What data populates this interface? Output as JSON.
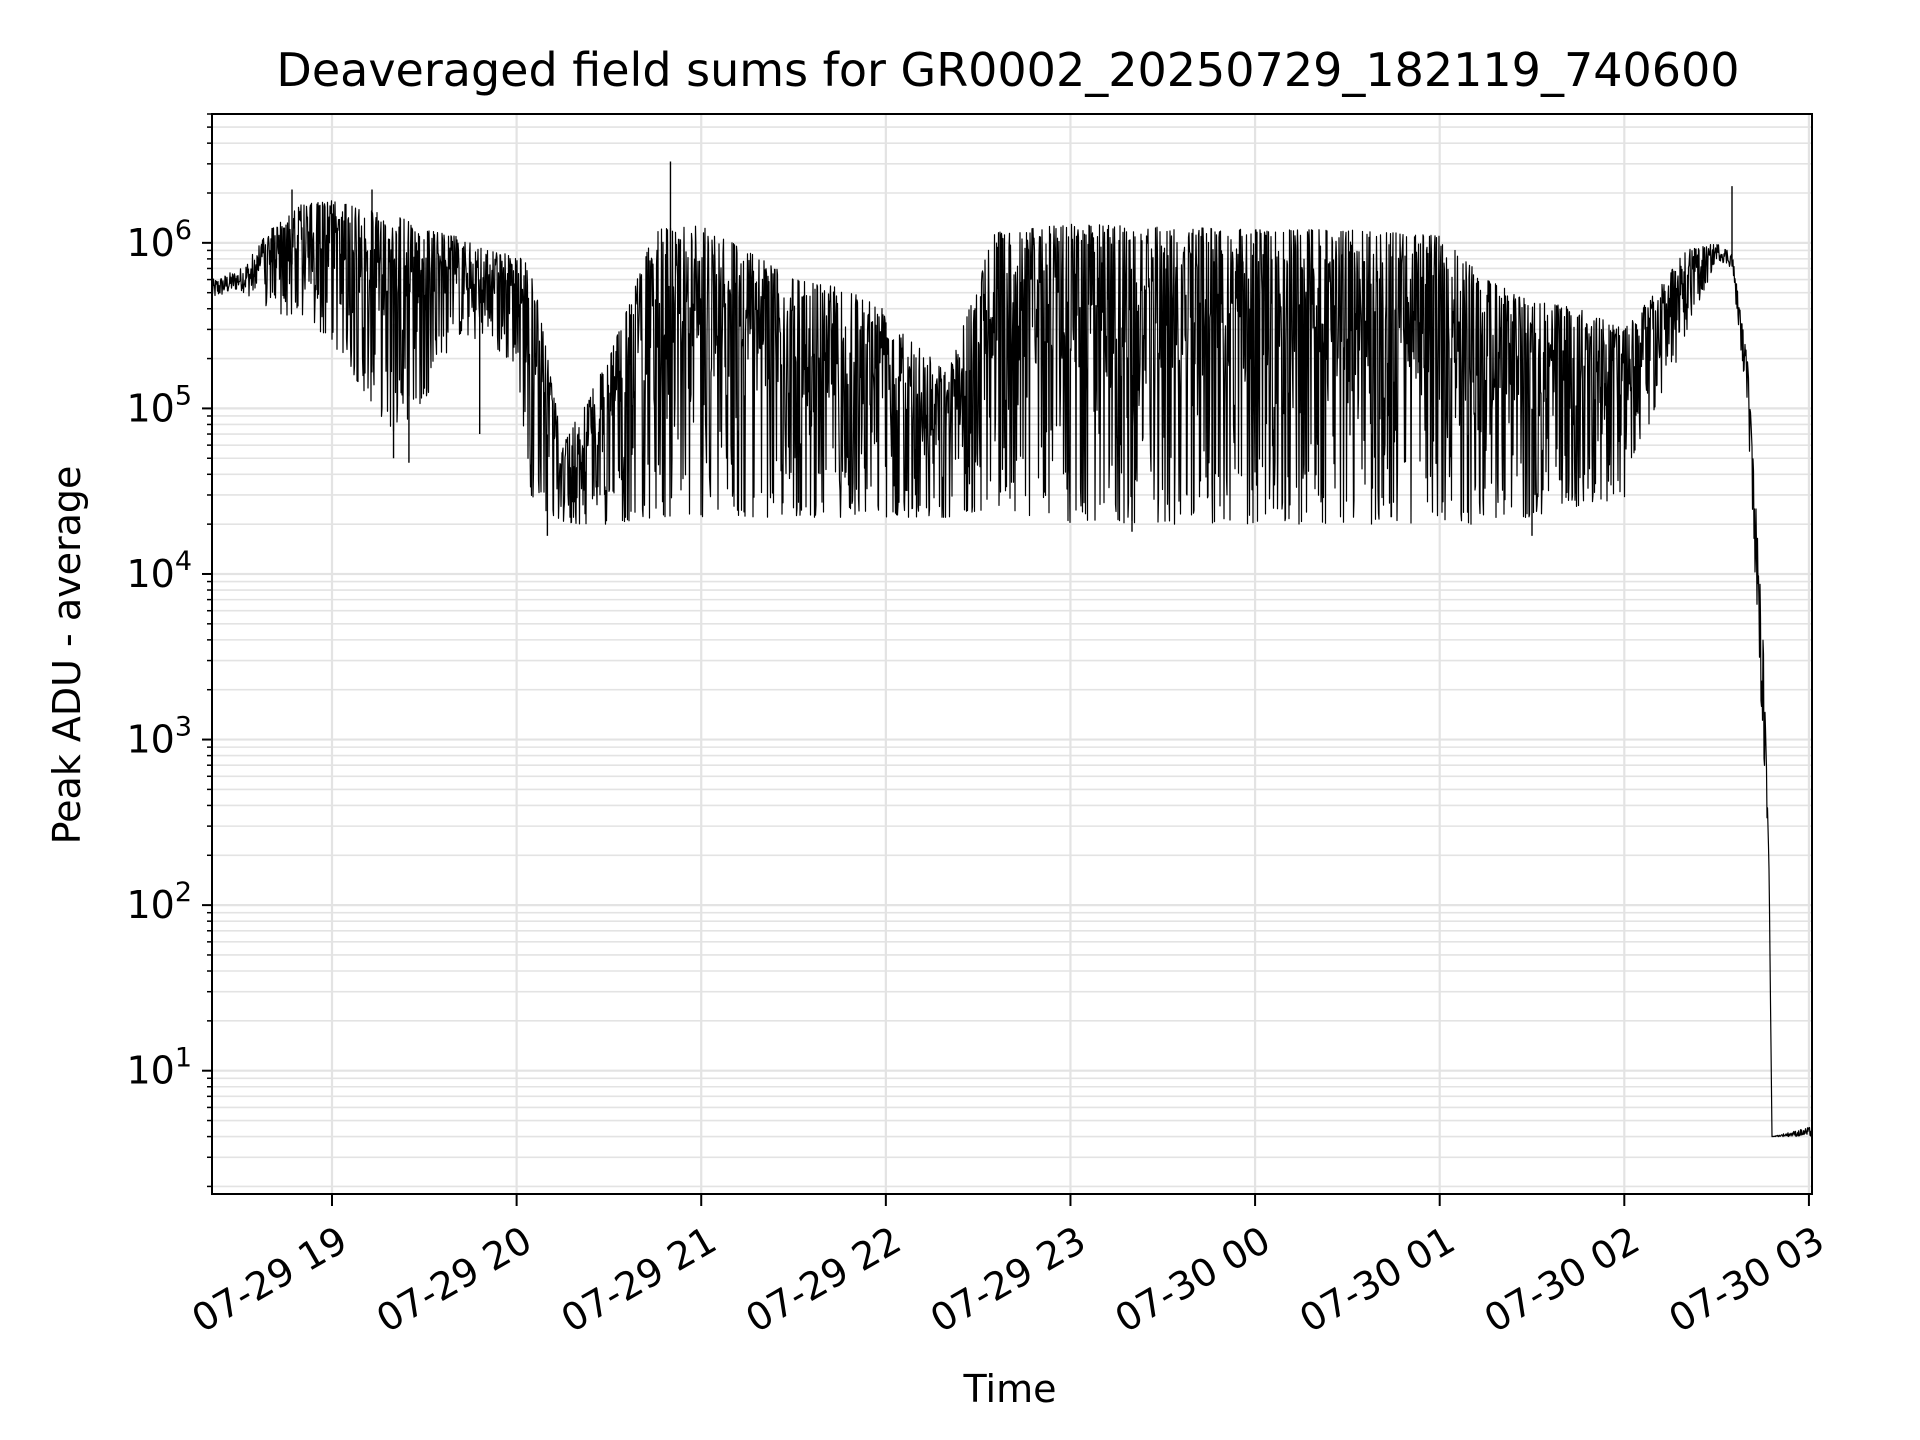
{
  "chart_data": {
    "type": "line",
    "title": "Deaveraged field sums for GR0002_20250729_182119_740600",
    "xlabel": "Time",
    "ylabel": "Peak ADU - average",
    "x_scale": "time",
    "y_scale": "log",
    "xlim": [
      "2025-07-29 18:21",
      "2025-07-30 03:01"
    ],
    "ylim": [
      1.8,
      6000000
    ],
    "grid": true,
    "legend": "none",
    "x_ticks": [
      {
        "value": "2025-07-29 19:00",
        "label": "07-29 19"
      },
      {
        "value": "2025-07-29 20:00",
        "label": "07-29 20"
      },
      {
        "value": "2025-07-29 21:00",
        "label": "07-29 21"
      },
      {
        "value": "2025-07-29 22:00",
        "label": "07-29 22"
      },
      {
        "value": "2025-07-29 23:00",
        "label": "07-29 23"
      },
      {
        "value": "2025-07-30 00:00",
        "label": "07-30 00"
      },
      {
        "value": "2025-07-30 01:00",
        "label": "07-30 01"
      },
      {
        "value": "2025-07-30 02:00",
        "label": "07-30 02"
      },
      {
        "value": "2025-07-30 03:00",
        "label": "07-30 03"
      }
    ],
    "y_ticks": [
      {
        "value": 10,
        "base": "10",
        "exp": "1"
      },
      {
        "value": 100,
        "base": "10",
        "exp": "2"
      },
      {
        "value": 1000,
        "base": "10",
        "exp": "3"
      },
      {
        "value": 10000,
        "base": "10",
        "exp": "4"
      },
      {
        "value": 100000,
        "base": "10",
        "exp": "5"
      },
      {
        "value": 1000000,
        "base": "10",
        "exp": "6"
      }
    ],
    "line_color": "#000000",
    "grid_color": "#e3e3e3",
    "series": [
      {
        "envelope": [
          {
            "t": "2025-07-29 18:21",
            "lo": 450000,
            "hi": 600000
          },
          {
            "t": "2025-07-29 18:30",
            "lo": 520000,
            "hi": 700000
          },
          {
            "t": "2025-07-29 18:40",
            "lo": 380000,
            "hi": 1200000
          },
          {
            "t": "2025-07-29 18:50",
            "lo": 350000,
            "hi": 1700000
          },
          {
            "t": "2025-07-29 19:00",
            "lo": 250000,
            "hi": 1800000
          },
          {
            "t": "2025-07-29 19:10",
            "lo": 130000,
            "hi": 1600000
          },
          {
            "t": "2025-07-29 19:20",
            "lo": 70000,
            "hi": 1500000
          },
          {
            "t": "2025-07-29 19:30",
            "lo": 110000,
            "hi": 1200000
          },
          {
            "t": "2025-07-29 19:40",
            "lo": 280000,
            "hi": 1100000
          },
          {
            "t": "2025-07-29 19:50",
            "lo": 250000,
            "hi": 900000
          },
          {
            "t": "2025-07-29 20:00",
            "lo": 180000,
            "hi": 850000
          },
          {
            "t": "2025-07-29 20:05",
            "lo": 28000,
            "hi": 700000
          },
          {
            "t": "2025-07-29 20:15",
            "lo": 20000,
            "hi": 60000
          },
          {
            "t": "2025-07-29 20:30",
            "lo": 20000,
            "hi": 200000
          },
          {
            "t": "2025-07-29 20:45",
            "lo": 22000,
            "hi": 1200000
          },
          {
            "t": "2025-07-29 21:00",
            "lo": 22000,
            "hi": 1300000
          },
          {
            "t": "2025-07-29 21:15",
            "lo": 22000,
            "hi": 900000
          },
          {
            "t": "2025-07-29 21:30",
            "lo": 22000,
            "hi": 600000
          },
          {
            "t": "2025-07-29 21:45",
            "lo": 22000,
            "hi": 550000
          },
          {
            "t": "2025-07-29 22:00",
            "lo": 22000,
            "hi": 400000
          },
          {
            "t": "2025-07-29 22:20",
            "lo": 22000,
            "hi": 160000
          },
          {
            "t": "2025-07-29 22:35",
            "lo": 25000,
            "hi": 1150000
          },
          {
            "t": "2025-07-29 23:00",
            "lo": 20000,
            "hi": 1300000
          },
          {
            "t": "2025-07-29 23:30",
            "lo": 20000,
            "hi": 1250000
          },
          {
            "t": "2025-07-30 00:00",
            "lo": 20000,
            "hi": 1200000
          },
          {
            "t": "2025-07-30 00:30",
            "lo": 20000,
            "hi": 1200000
          },
          {
            "t": "2025-07-30 01:00",
            "lo": 20000,
            "hi": 1100000
          },
          {
            "t": "2025-07-30 01:15",
            "lo": 20000,
            "hi": 600000
          },
          {
            "t": "2025-07-30 01:30",
            "lo": 22000,
            "hi": 450000
          },
          {
            "t": "2025-07-30 01:45",
            "lo": 25000,
            "hi": 400000
          },
          {
            "t": "2025-07-30 02:00",
            "lo": 28000,
            "hi": 300000
          },
          {
            "t": "2025-07-30 02:10",
            "lo": 100000,
            "hi": 500000
          },
          {
            "t": "2025-07-30 02:20",
            "lo": 250000,
            "hi": 900000
          },
          {
            "t": "2025-07-30 02:30",
            "lo": 800000,
            "hi": 1000000
          },
          {
            "t": "2025-07-30 02:35",
            "lo": 700000,
            "hi": 900000
          },
          {
            "t": "2025-07-30 02:40",
            "lo": 100000,
            "hi": 200000
          },
          {
            "t": "2025-07-30 02:45",
            "lo": 1000,
            "hi": 5000
          },
          {
            "t": "2025-07-30 02:47",
            "lo": 180,
            "hi": 200
          },
          {
            "t": "2025-07-30 02:48",
            "lo": 4,
            "hi": 4
          },
          {
            "t": "2025-07-30 03:01",
            "lo": 4,
            "hi": 4.6
          }
        ],
        "spikes": [
          {
            "t": "2025-07-29 18:47",
            "value": 2100000
          },
          {
            "t": "2025-07-29 19:13",
            "value": 2100000
          },
          {
            "t": "2025-07-29 19:20",
            "value": 50000
          },
          {
            "t": "2025-07-29 19:25",
            "value": 47000
          },
          {
            "t": "2025-07-29 19:48",
            "value": 70000
          },
          {
            "t": "2025-07-29 20:10",
            "value": 17000
          },
          {
            "t": "2025-07-29 20:50",
            "value": 3100000
          },
          {
            "t": "2025-07-29 23:20",
            "value": 18000
          },
          {
            "t": "2025-07-30 01:30",
            "value": 17000
          },
          {
            "t": "2025-07-30 02:35",
            "value": 2200000
          }
        ]
      }
    ]
  }
}
